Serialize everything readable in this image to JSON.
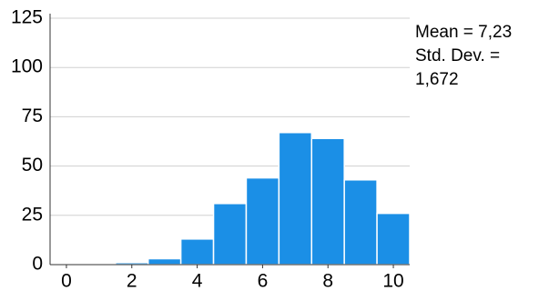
{
  "chart_data": {
    "type": "histogram",
    "bins": [
      -0.5,
      0.5,
      1.5,
      2.5,
      3.5,
      4.5,
      5.5,
      6.5,
      7.5,
      8.5,
      9.5,
      10.5
    ],
    "counts": [
      0,
      0,
      1,
      3,
      13,
      31,
      44,
      67,
      64,
      43,
      26
    ],
    "color": "#1b8fe6",
    "xlim": [
      -0.5,
      10.5
    ],
    "xticks": [
      0,
      2,
      4,
      6,
      8,
      10
    ],
    "ylim": [
      0,
      125
    ],
    "yticks": [
      0,
      25,
      50,
      75,
      100,
      125
    ],
    "grid": true,
    "annotations": [
      "Mean = 7,23",
      "Std. Dev. =",
      "1,672"
    ]
  }
}
